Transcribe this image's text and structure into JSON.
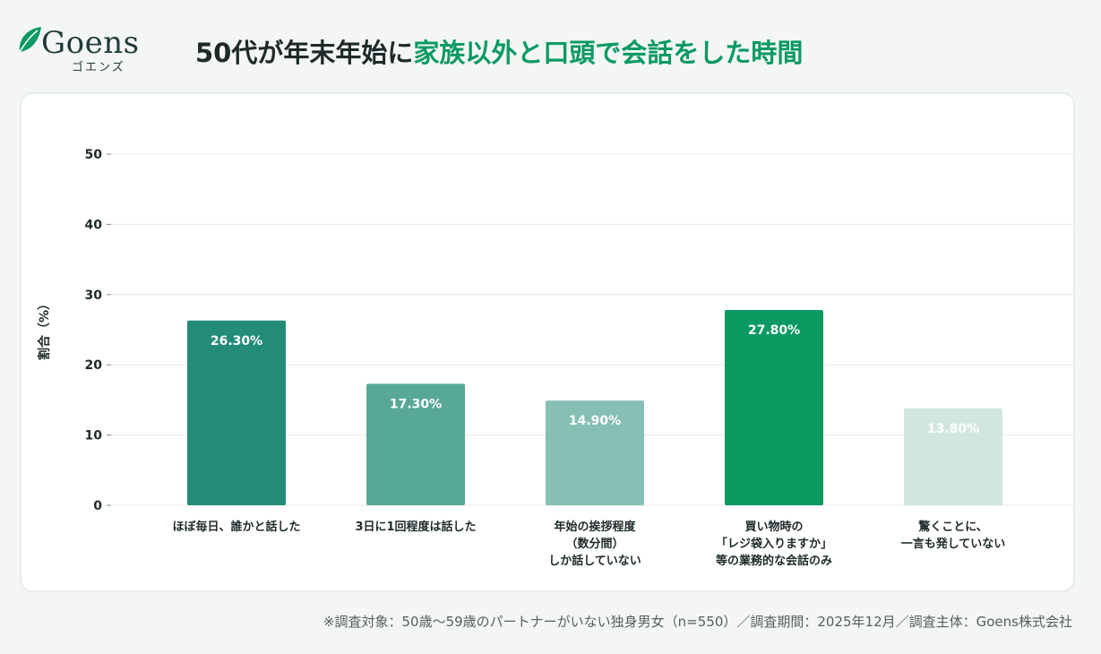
{
  "brand": {
    "name": "Goens",
    "kana": "ゴエンズ"
  },
  "title": {
    "part1": "50代が年末年始に",
    "highlight": "家族以外と口頭で会話をした時間"
  },
  "colors": {
    "accent": "#0a9a62",
    "text": "#1e2a2a",
    "grid": "#e3ebe8"
  },
  "chart_data": {
    "type": "bar",
    "ylabel": "割合（%）",
    "ylim": [
      0,
      50
    ],
    "yticks": [
      0,
      10,
      20,
      30,
      40,
      50
    ],
    "grid": true,
    "categories": [
      [
        "ほぼ毎日、誰かと話した"
      ],
      [
        "3日に1回程度は話した"
      ],
      [
        "年始の挨拶程度",
        "（数分間）",
        "しか話していない"
      ],
      [
        "買い物時の",
        "「レジ袋入りますか」",
        "等の業務的な会話のみ"
      ],
      [
        "驚くことに、",
        "一言も発していない"
      ]
    ],
    "values": [
      26.3,
      17.3,
      14.9,
      27.8,
      13.8
    ],
    "data_labels": [
      "26.30%",
      "17.30%",
      "14.90%",
      "27.80%",
      "13.80%"
    ],
    "bar_colors": [
      "#238c79",
      "#58a898",
      "#86bfb3",
      "#0a9a62",
      "#d2e6e0"
    ]
  },
  "footer": "※調査対象：50歳〜59歳のパートナーがいない独身男女（n=550）／調査期間：2025年12月／調査主体：Goens株式会社"
}
